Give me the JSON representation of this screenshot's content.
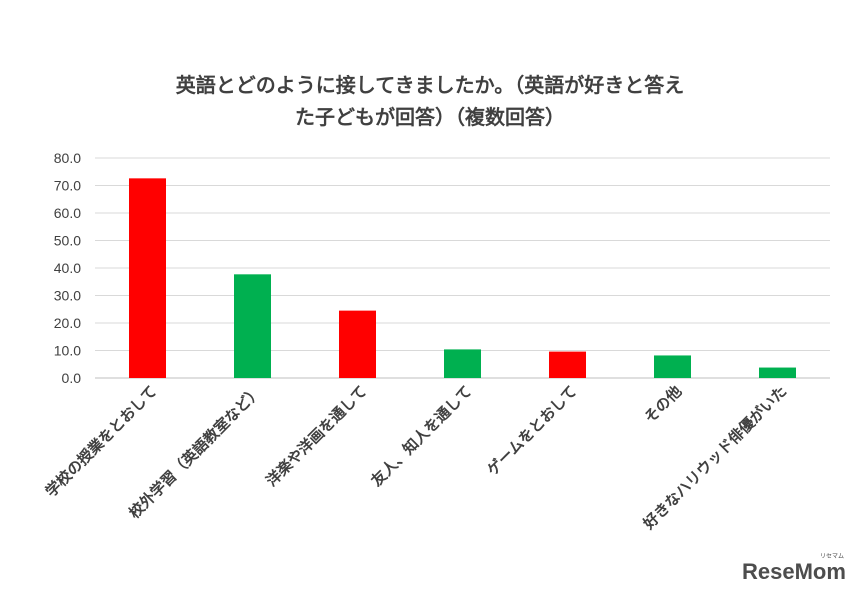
{
  "chart_data": {
    "type": "bar",
    "title_lines": [
      "英語とどのように接してきましたか。（英語が好きと答え",
      "た子どもが回答）（複数回答）"
    ],
    "categories": [
      "学校の授業をとおして",
      "校外学習（英語教室など）",
      "洋楽や洋画を通して",
      "友人、知人を通して",
      "ゲームをとおして",
      "その他",
      "好きなハリウッド俳優がいた"
    ],
    "values": [
      72.6,
      37.7,
      24.5,
      10.4,
      9.6,
      8.2,
      3.8
    ],
    "bar_colors": [
      "#ff0000",
      "#00b050",
      "#ff0000",
      "#00b050",
      "#ff0000",
      "#00b050",
      "#00b050"
    ],
    "ylim": [
      0,
      80
    ],
    "yticks": [
      "0.0",
      "10.0",
      "20.0",
      "30.0",
      "40.0",
      "50.0",
      "60.0",
      "70.0",
      "80.0"
    ],
    "grid": true,
    "legend": "none"
  },
  "watermark": {
    "text": "ReseMom",
    "small": "リセマム"
  }
}
